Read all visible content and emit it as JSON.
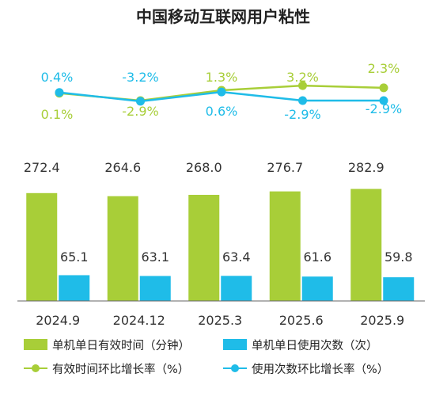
{
  "chart_data": {
    "type": "bar",
    "title": "中国移动互联网用户粘性",
    "categories": [
      "2024.9",
      "2024.12",
      "2025.3",
      "2025.6",
      "2025.9"
    ],
    "series": [
      {
        "name": "单机单日有效时间（分钟）",
        "kind": "bar",
        "color": "#A8CE38",
        "values": [
          272.4,
          264.6,
          268.0,
          276.7,
          282.9
        ],
        "labels": [
          "272.4",
          "264.6",
          "268.0",
          "276.7",
          "282.9"
        ]
      },
      {
        "name": "单机单日使用次数（次）",
        "kind": "bar",
        "color": "#1FBCE8",
        "values": [
          65.1,
          63.1,
          63.4,
          61.6,
          59.8
        ],
        "labels": [
          "65.1",
          "63.1",
          "63.4",
          "61.6",
          "59.8"
        ]
      },
      {
        "name": "有效时间环比增长率（%）",
        "kind": "line",
        "color": "#A8CE38",
        "values": [
          0.1,
          -2.9,
          1.3,
          3.2,
          2.3
        ],
        "labels": [
          "0.1%",
          "-2.9%",
          "1.3%",
          "3.2%",
          "2.3%"
        ]
      },
      {
        "name": "使用次数环比增长率（%）",
        "kind": "line",
        "color": "#1FBCE8",
        "values": [
          0.4,
          -3.2,
          0.6,
          -2.9,
          -2.9
        ],
        "labels": [
          "0.4%",
          "-3.2%",
          "0.6%",
          "-2.9%",
          "-2.9%"
        ]
      }
    ],
    "ylim_bar": [
      0,
      300
    ],
    "grid": false,
    "legend_position": "bottom"
  }
}
